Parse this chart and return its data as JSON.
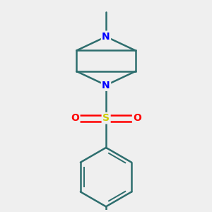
{
  "background_color": "#efefef",
  "bond_color": "#2d6e6e",
  "N_color": "#0000ff",
  "S_color": "#cccc00",
  "O_color": "#ff0000",
  "bond_width": 1.8,
  "figsize": [
    3.0,
    3.0
  ],
  "dpi": 100,
  "xlim": [
    -1.6,
    1.6
  ],
  "ylim": [
    -3.2,
    2.8
  ]
}
